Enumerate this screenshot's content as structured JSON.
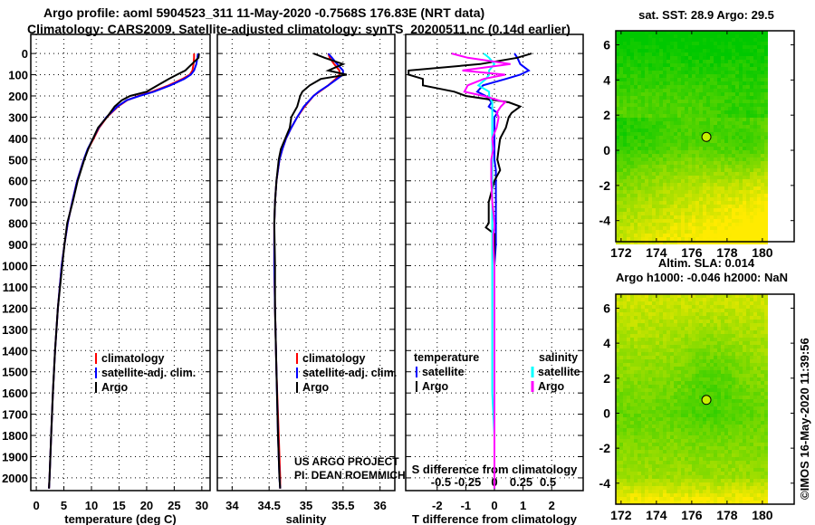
{
  "title_line1": "Argo profile: aoml 5904523_311 11-May-2020 -0.7568S 176.83E (NRT data)",
  "title_line2": "Climatology: CARS2009. Satellite-adjusted climatology: synTS_20200511.nc (0.14d earlier)",
  "copyright": "©IMOS 16-May-2020 11:39:56",
  "credit": [
    "US ARGO PROJECT",
    "PI: DEAN ROEMMICH"
  ],
  "colors": {
    "climatology": "#ff0000",
    "satellite": "#0000ff",
    "argo": "#000000",
    "sal_sat": "#00ffff",
    "sal_argo": "#ff00ff"
  },
  "chart_data": [
    {
      "type": "line",
      "name": "temperature",
      "xlabel": "temperature (deg C)",
      "ylabel": "depth",
      "xlim": [
        -1,
        31.5
      ],
      "ylim": [
        2060,
        -90
      ],
      "xticks": [
        0,
        5,
        10,
        15,
        20,
        25,
        30
      ],
      "yticks": [
        0,
        100,
        200,
        300,
        400,
        500,
        600,
        700,
        800,
        900,
        1000,
        1100,
        1200,
        1300,
        1400,
        1500,
        1600,
        1700,
        1800,
        1900,
        2000
      ],
      "legend": [
        "climatology",
        "satellite-adj. clim.",
        "Argo"
      ],
      "depth": [
        0,
        20,
        50,
        80,
        100,
        120,
        150,
        180,
        200,
        220,
        250,
        300,
        350,
        400,
        450,
        500,
        600,
        700,
        800,
        900,
        1000,
        1200,
        1400,
        1600,
        1800,
        2000,
        2050
      ],
      "series": [
        {
          "name": "climatology",
          "color": "climatology",
          "values": [
            28.6,
            28.6,
            28.5,
            28.3,
            27.8,
            26.5,
            24,
            21,
            18.5,
            16.5,
            14.8,
            12.8,
            11.4,
            10.4,
            9.4,
            8.6,
            7.4,
            6.5,
            5.7,
            5.1,
            4.6,
            3.9,
            3.4,
            3,
            2.7,
            2.4,
            2.3
          ]
        },
        {
          "name": "satellite-adj. clim.",
          "color": "satellite",
          "values": [
            29.3,
            29.2,
            29,
            28.6,
            28,
            26.8,
            24.3,
            21.3,
            18.7,
            16.4,
            14.7,
            12.7,
            11.3,
            10.3,
            9.3,
            8.6,
            7.4,
            6.5,
            5.7,
            5.1,
            4.6,
            3.9,
            3.4,
            3,
            2.7,
            2.4,
            2.3
          ]
        },
        {
          "name": "Argo",
          "color": "argo",
          "values": [
            29.5,
            29.4,
            28.2,
            27,
            25.5,
            24,
            22,
            20,
            17,
            15.5,
            14.2,
            12.8,
            11.2,
            10.3,
            9.4,
            8.7,
            7.5,
            6.6,
            5.6,
            5.1,
            4.7,
            3.9,
            3.4,
            3,
            2.7,
            2.4,
            2.3
          ]
        }
      ]
    },
    {
      "type": "line",
      "name": "salinity",
      "xlabel": "salinity",
      "xlim": [
        33.8,
        36.2
      ],
      "ylim": [
        2060,
        -90
      ],
      "xticks": [
        34,
        34.5,
        35,
        35.5,
        36
      ],
      "legend": [
        "climatology",
        "satellite-adj. clim.",
        "Argo"
      ],
      "depth": [
        0,
        20,
        50,
        80,
        100,
        120,
        150,
        180,
        200,
        250,
        300,
        350,
        400,
        450,
        500,
        600,
        700,
        800,
        1000,
        1200,
        1500,
        1800,
        2000,
        2050
      ],
      "series": [
        {
          "name": "climatology",
          "color": "climatology",
          "values": [
            35.3,
            35.32,
            35.38,
            35.45,
            35.45,
            35.4,
            35.3,
            35.18,
            35.1,
            34.98,
            34.88,
            34.8,
            34.73,
            34.68,
            34.64,
            34.6,
            34.58,
            34.57,
            34.57,
            34.58,
            34.6,
            34.63,
            34.65,
            34.65
          ]
        },
        {
          "name": "satellite-adj. clim.",
          "color": "satellite",
          "values": [
            35.3,
            35.35,
            35.42,
            35.5,
            35.5,
            35.42,
            35.3,
            35.17,
            35.1,
            34.97,
            34.88,
            34.8,
            34.73,
            34.68,
            34.64,
            34.6,
            34.58,
            34.57,
            34.57,
            34.58,
            34.6,
            34.62,
            34.64,
            34.65
          ]
        },
        {
          "name": "Argo",
          "color": "argo",
          "values": [
            35.1,
            35.25,
            35.5,
            35.3,
            35.55,
            35.2,
            35.05,
            34.95,
            34.92,
            34.88,
            34.8,
            34.78,
            34.72,
            34.66,
            34.63,
            34.6,
            34.58,
            34.57,
            34.58,
            34.58,
            34.6,
            34.62,
            34.64,
            34.65
          ]
        }
      ]
    },
    {
      "type": "line",
      "name": "difference",
      "xlabel": "T difference from climatology",
      "xlabel_top": "S difference from climatology",
      "xlim": [
        -3.1,
        3.1
      ],
      "ylim": [
        2060,
        -90
      ],
      "xticks": [
        -2,
        -1,
        0,
        1,
        2
      ],
      "s_xticks": [
        -0.5,
        -0.25,
        0,
        0.25,
        0.5
      ],
      "s_xlim": [
        -0.83,
        0.83
      ],
      "legend": {
        "temperature": "temperature",
        "salinity": "salinity",
        "items": [
          "satellite",
          "Argo"
        ]
      },
      "depth": [
        0,
        20,
        50,
        80,
        100,
        120,
        150,
        180,
        200,
        230,
        250,
        280,
        300,
        350,
        400,
        450,
        500,
        550,
        600,
        700,
        800,
        820,
        850,
        900,
        1000,
        1200,
        1400,
        1600,
        1800,
        2000,
        2050
      ],
      "series": [
        {
          "name": "T satellite",
          "group": "temperature",
          "color": "satellite",
          "values": [
            0.7,
            0.8,
            0.9,
            1.2,
            0.9,
            0.4,
            -0.4,
            -0.6,
            -0.3,
            -0.1,
            -0.2,
            0.1,
            0,
            0,
            0,
            0,
            0,
            0.05,
            0.05,
            0.05,
            0.05,
            0.05,
            0.05,
            0.05,
            0,
            0,
            0,
            0,
            0,
            0,
            0
          ]
        },
        {
          "name": "T Argo",
          "group": "temperature",
          "color": "argo",
          "values": [
            1.3,
            0.8,
            -0.5,
            -3,
            -3,
            -2.5,
            -2.5,
            -1.4,
            -1,
            0.5,
            0.9,
            0.6,
            0.5,
            0.4,
            0.2,
            0.15,
            0.1,
            0.2,
            0,
            -0.2,
            -0.2,
            -0.3,
            0,
            0,
            0,
            0,
            0,
            0,
            0,
            0,
            0
          ]
        },
        {
          "name": "S satellite",
          "group": "salinity",
          "color": "sal_sat",
          "values": [
            -0.1,
            -0.05,
            0,
            -0.05,
            -0.05,
            -0.08,
            -0.15,
            -0.05,
            -0.05,
            -0.02,
            -0.02,
            -0.02,
            -0.02,
            -0.02,
            -0.02,
            -0.02,
            -0.02,
            -0.02,
            -0.02,
            -0.02,
            -0.02,
            -0.02,
            -0.02,
            -0.02,
            -0.02,
            -0.02,
            -0.02,
            -0.02,
            0,
            0,
            0
          ]
        },
        {
          "name": "S Argo",
          "group": "salinity",
          "color": "sal_argo",
          "values": [
            -0.4,
            -0.25,
            0.15,
            -0.3,
            0.1,
            -0.1,
            -0.25,
            -0.28,
            -0.1,
            0.1,
            0.06,
            0.02,
            0.04,
            0.02,
            -0.02,
            -0.01,
            -0.03,
            -0.03,
            -0.03,
            -0.02,
            0,
            0,
            -0.01,
            -0.01,
            0,
            0,
            0,
            0,
            0,
            0,
            0
          ]
        }
      ]
    },
    {
      "type": "heatmap",
      "name": "sst-map",
      "title": "sat. SST: 28.9 Argo: 29.5",
      "xticks": [
        172,
        174,
        176,
        178,
        180
      ],
      "yticks": [
        6,
        4,
        2,
        0,
        -2,
        -4
      ],
      "xlim": [
        171.7,
        181.8
      ],
      "ylim": [
        -5.2,
        6.8
      ],
      "marker": {
        "lon": 176.83,
        "lat": 0.76
      }
    },
    {
      "type": "heatmap",
      "name": "sla-map",
      "title": "Altim. SLA: 0.014",
      "subtitle": "Argo h1000: -0.046 h2000: NaN",
      "xticks": [
        172,
        174,
        176,
        178,
        180
      ],
      "yticks": [
        6,
        4,
        2,
        0,
        -2,
        -4
      ],
      "xlim": [
        171.7,
        181.8
      ],
      "ylim": [
        -5.2,
        6.8
      ],
      "marker": {
        "lon": 176.83,
        "lat": 0.76
      }
    }
  ]
}
